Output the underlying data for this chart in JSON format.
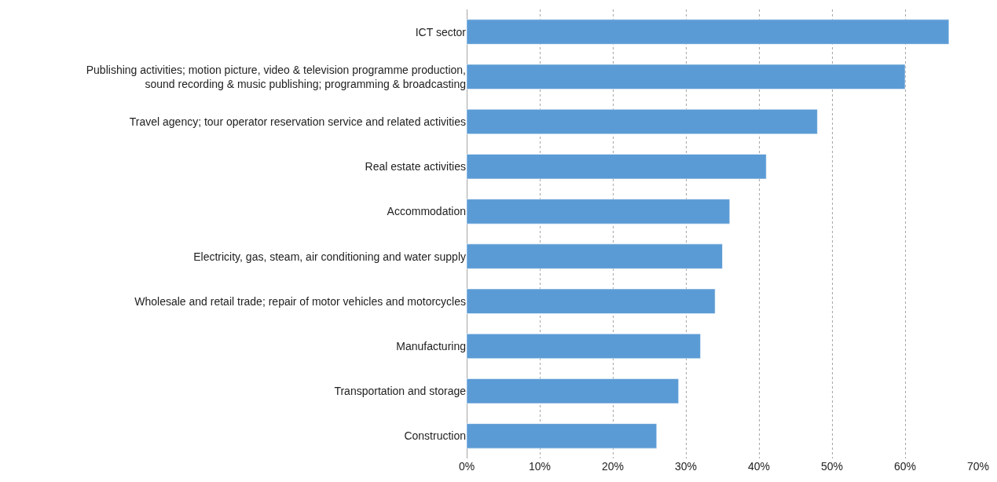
{
  "chart_data": {
    "type": "bar",
    "orientation": "horizontal",
    "categories": [
      "ICT sector",
      "Publishing activities; motion picture, video & television programme production,\nsound recording & music publishing; programming & broadcasting",
      "Travel agency; tour operator reservation service and related activities",
      "Real estate activities",
      "Accommodation",
      "Electricity, gas, steam, air conditioning and water supply",
      "Wholesale and retail trade; repair of motor vehicles and motorcycles",
      "Manufacturing",
      "Transportation and storage",
      "Construction"
    ],
    "values": [
      66,
      60,
      48,
      41,
      36,
      35,
      34,
      32,
      29,
      26
    ],
    "color": "#5b9bd5",
    "xlim": [
      0,
      70
    ],
    "xticks": [
      {
        "value": 0,
        "label": "0%"
      },
      {
        "value": 10,
        "label": "10%"
      },
      {
        "value": 20,
        "label": "20%"
      },
      {
        "value": 30,
        "label": "30%"
      },
      {
        "value": 40,
        "label": "40%"
      },
      {
        "value": 50,
        "label": "50%"
      },
      {
        "value": 60,
        "label": "60%"
      },
      {
        "value": 70,
        "label": "70%"
      }
    ],
    "grid": "x"
  }
}
